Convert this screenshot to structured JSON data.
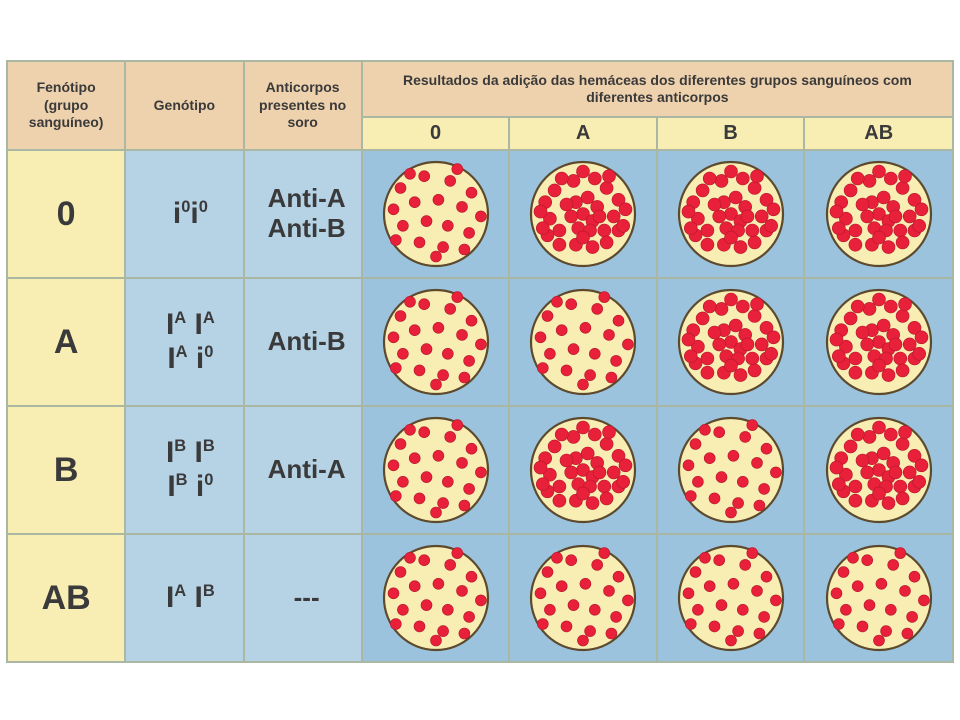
{
  "colors": {
    "border": "#a9b7a3",
    "header_tan": "#eed1ad",
    "header_cream": "#f8eeb4",
    "row_cream": "#f8eeb4",
    "row_blue": "#b6d3e6",
    "results_bg": "#9cc3de",
    "dish_fill": "#f8eeb4",
    "dish_stroke": "#5d4a2d",
    "cell_red": "#e8203a",
    "cell_red_dark": "#b5182d",
    "text": "#3a3a3a"
  },
  "layout": {
    "col_widths_pct": [
      12.5,
      12.5,
      12.5,
      15.6,
      15.6,
      15.6,
      15.7
    ],
    "header_row1_h": 56,
    "header_row2_h": 28,
    "body_row_h": 128,
    "dish_r": 52,
    "dot_r_dispersed": 5.5,
    "dot_r_clumped": 6.5
  },
  "headers": {
    "phenotype": "Fenótipo (grupo sanguíneo)",
    "genotype": "Genótipo",
    "antibodies": "Anticorpos presentes no soro",
    "results": "Resultados da adição das hemáceas dos diferentes grupos sanguíneos com diferentes anticorpos",
    "cols": [
      "0",
      "A",
      "B",
      "AB"
    ]
  },
  "rows": [
    {
      "phenotype": "0",
      "genotype_html": "i<sup>0</sup>i<sup>0</sup>",
      "antibodies_html": "Anti-A<br>Anti-B",
      "results": [
        "dispersed",
        "clumped",
        "clumped",
        "clumped"
      ]
    },
    {
      "phenotype": "A",
      "genotype_html": "I<sup>A</sup> I<sup>A</sup><br>I<sup>A</sup> i<sup>0</sup>",
      "antibodies_html": "Anti-B",
      "results": [
        "dispersed",
        "dispersed",
        "clumped",
        "clumped"
      ]
    },
    {
      "phenotype": "B",
      "genotype_html": "I<sup>B</sup> I<sup>B</sup><br>I<sup>B</sup> i<sup>0</sup>",
      "antibodies_html": "Anti-A",
      "results": [
        "dispersed",
        "clumped",
        "dispersed",
        "clumped"
      ]
    },
    {
      "phenotype": "AB",
      "genotype_html": "I<sup>A</sup> I<sup>B</sup>",
      "antibodies_html": "---",
      "results": [
        "dispersed",
        "dispersed",
        "dispersed",
        "dispersed"
      ]
    }
  ],
  "patterns": {
    "dispersed": [
      [
        -30,
        -22
      ],
      [
        -10,
        -32
      ],
      [
        12,
        -28
      ],
      [
        30,
        -18
      ],
      [
        -36,
        -4
      ],
      [
        -18,
        -10
      ],
      [
        2,
        -12
      ],
      [
        22,
        -6
      ],
      [
        38,
        2
      ],
      [
        -28,
        10
      ],
      [
        -8,
        6
      ],
      [
        10,
        10
      ],
      [
        28,
        16
      ],
      [
        -14,
        24
      ],
      [
        6,
        28
      ],
      [
        24,
        30
      ],
      [
        -34,
        22
      ],
      [
        0,
        36
      ],
      [
        18,
        -38
      ],
      [
        -22,
        -34
      ]
    ],
    "clumped": [
      [
        -6,
        -10
      ],
      [
        4,
        -14
      ],
      [
        12,
        -6
      ],
      [
        0,
        0
      ],
      [
        -10,
        2
      ],
      [
        8,
        6
      ],
      [
        -4,
        12
      ],
      [
        14,
        2
      ],
      [
        -14,
        -8
      ],
      [
        6,
        14
      ],
      [
        -24,
        -20
      ],
      [
        -32,
        -10
      ],
      [
        -28,
        4
      ],
      [
        -20,
        14
      ],
      [
        20,
        -22
      ],
      [
        30,
        -12
      ],
      [
        26,
        2
      ],
      [
        18,
        14
      ],
      [
        -36,
        -2
      ],
      [
        36,
        -4
      ],
      [
        -8,
        -28
      ],
      [
        10,
        -30
      ],
      [
        0,
        -36
      ],
      [
        -18,
        -30
      ],
      [
        22,
        -32
      ],
      [
        -6,
        26
      ],
      [
        8,
        28
      ],
      [
        20,
        24
      ],
      [
        -20,
        26
      ],
      [
        0,
        20
      ],
      [
        -30,
        18
      ],
      [
        30,
        14
      ],
      [
        34,
        10
      ],
      [
        -34,
        12
      ]
    ]
  }
}
